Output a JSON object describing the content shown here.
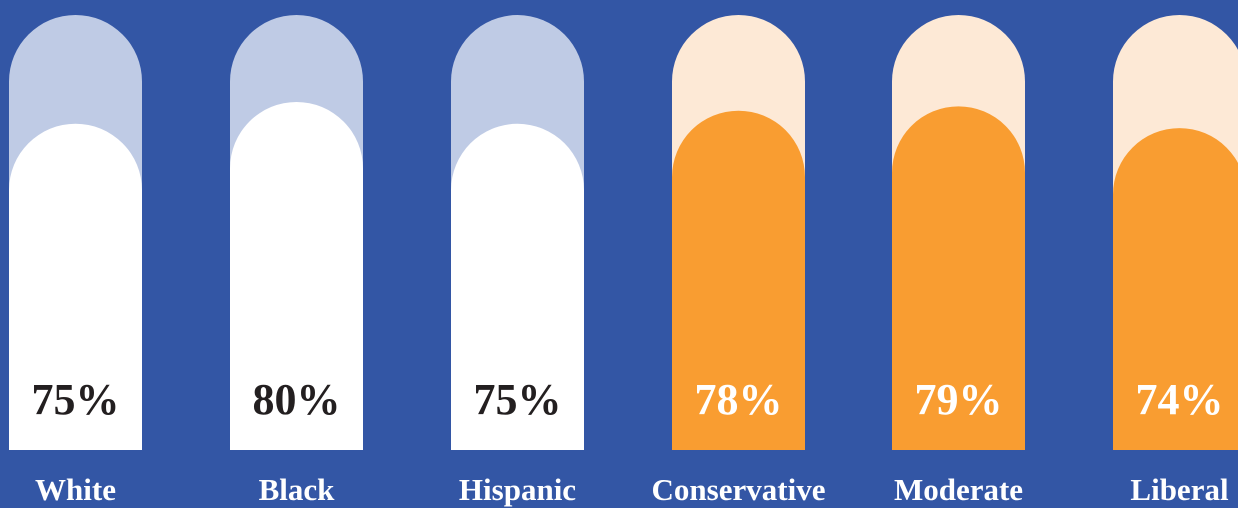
{
  "chart_data": {
    "type": "bar",
    "categories": [
      "White",
      "Black",
      "Hispanic",
      "Conservative",
      "Moderate",
      "Liberal"
    ],
    "values": [
      75,
      80,
      75,
      78,
      79,
      74
    ],
    "value_labels": [
      "75%",
      "80%",
      "75%",
      "78%",
      "79%",
      "74%"
    ],
    "ylim": [
      0,
      100
    ],
    "title": "",
    "xlabel": "",
    "ylabel": "",
    "grid": false,
    "legend": "none",
    "groups": [
      {
        "categories": [
          "White",
          "Black",
          "Hispanic"
        ],
        "fill_color": "#FFFFFF",
        "track_color": "#BFCBE5",
        "value_text_color": "#231F20"
      },
      {
        "categories": [
          "Conservative",
          "Moderate",
          "Liberal"
        ],
        "fill_color": "#F99D31",
        "track_color": "#FDE9D6",
        "value_text_color": "#FFFFFF"
      }
    ]
  },
  "colors": {
    "background": "#3356A5",
    "category_label": "#FFFFFF"
  }
}
